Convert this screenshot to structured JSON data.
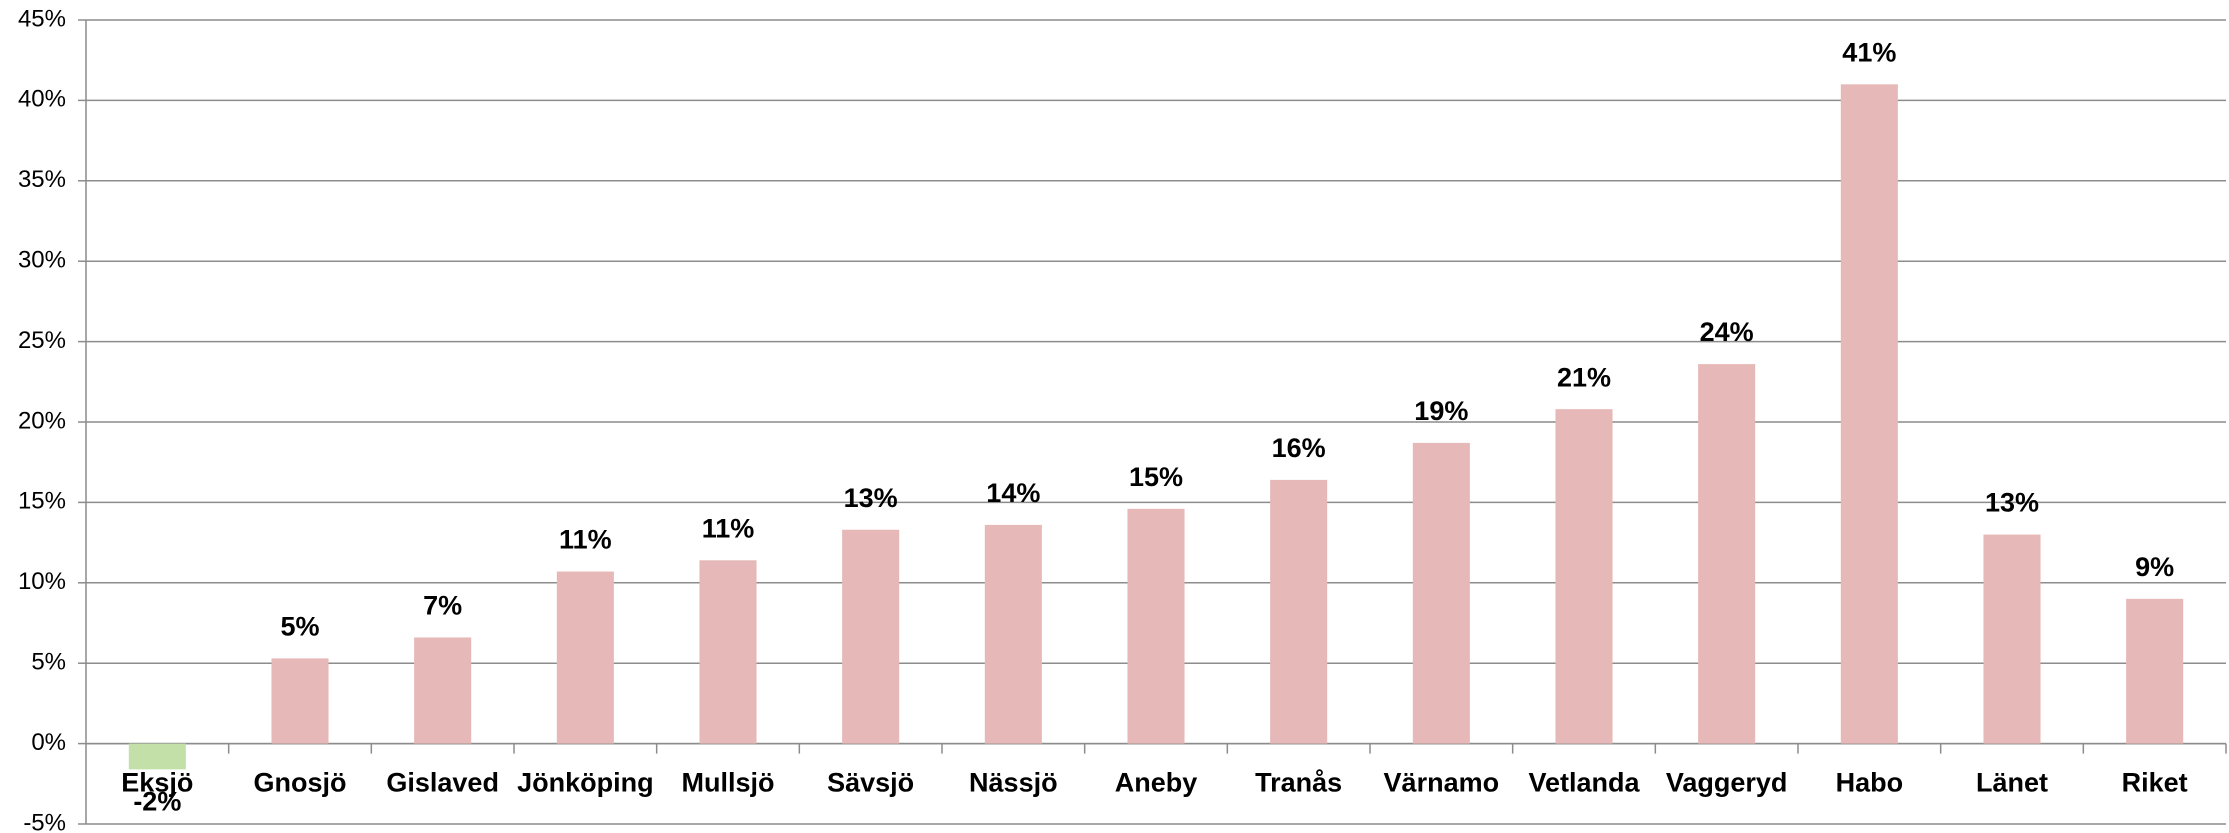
{
  "chart_data": {
    "type": "bar",
    "categories": [
      "Eksjö",
      "Gnosjö",
      "Gislaved",
      "Jönköping",
      "Mullsjö",
      "Sävsjö",
      "Nässjö",
      "Aneby",
      "Tranås",
      "Värnamo",
      "Vetlanda",
      "Vaggeryd",
      "Habo",
      "Länet",
      "Riket"
    ],
    "values": [
      -1.6,
      5.3,
      6.6,
      10.7,
      11.4,
      13.3,
      13.6,
      14.6,
      16.4,
      18.7,
      20.8,
      23.6,
      41.0,
      13.0,
      9.0
    ],
    "value_labels": [
      "-2%",
      "5%",
      "7%",
      "11%",
      "11%",
      "13%",
      "14%",
      "15%",
      "16%",
      "19%",
      "21%",
      "24%",
      "41%",
      "13%",
      "9%"
    ],
    "color": "#e6b8b7",
    "negative_color": "#c3e0a8",
    "ylim": [
      -5,
      45
    ],
    "yticks": [
      {
        "value": -5,
        "label": "-5%"
      },
      {
        "value": 0,
        "label": "0%"
      },
      {
        "value": 5,
        "label": "5%"
      },
      {
        "value": 10,
        "label": "10%"
      },
      {
        "value": 15,
        "label": "15%"
      },
      {
        "value": 20,
        "label": "20%"
      },
      {
        "value": 25,
        "label": "25%"
      },
      {
        "value": 30,
        "label": "30%"
      },
      {
        "value": 35,
        "label": "35%"
      },
      {
        "value": 40,
        "label": "40%"
      },
      {
        "value": 45,
        "label": "45%"
      }
    ],
    "grid": true
  }
}
